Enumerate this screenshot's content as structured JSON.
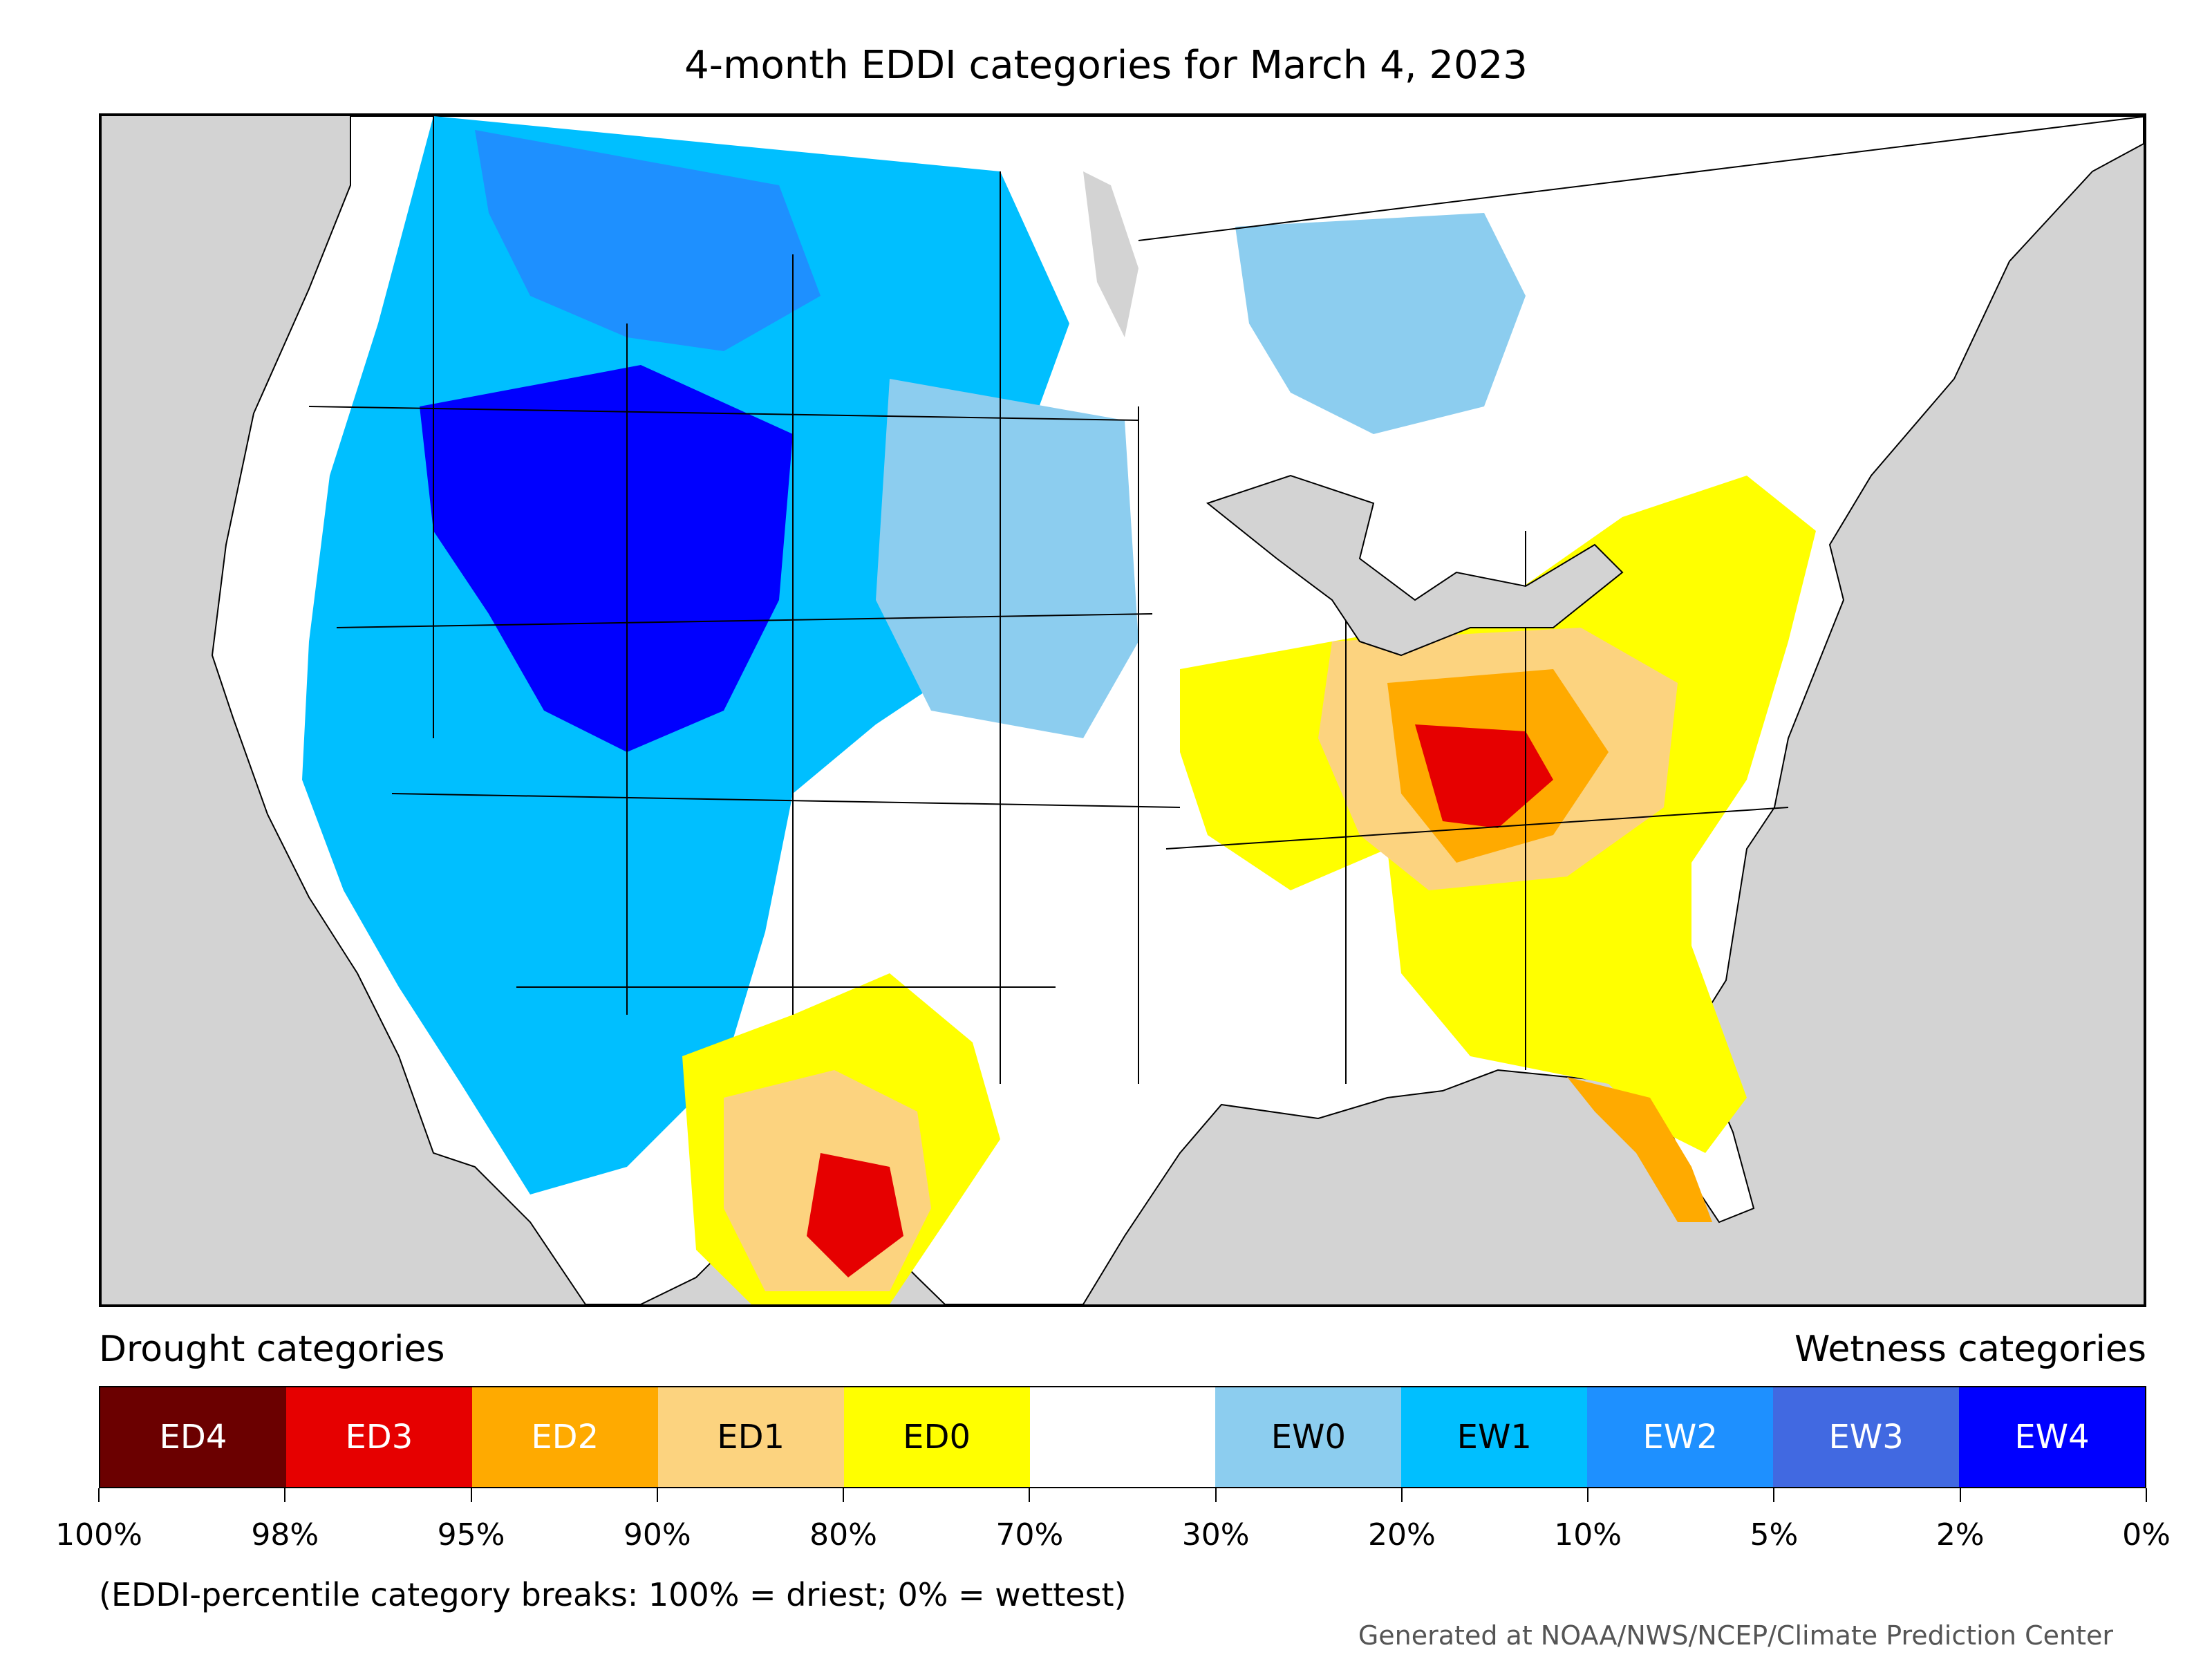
{
  "title": "4-month EDDI categories for March 4, 2023",
  "legend": {
    "left_heading": "Drought categories",
    "right_heading": "Wetness categories",
    "categories": [
      {
        "label": "ED4",
        "color": "#6b0000",
        "text_color": "#ffffff"
      },
      {
        "label": "ED3",
        "color": "#e60000",
        "text_color": "#ffffff"
      },
      {
        "label": "ED2",
        "color": "#ffaa00",
        "text_color": "#ffffff"
      },
      {
        "label": "ED1",
        "color": "#fcd37f",
        "text_color": "#000000"
      },
      {
        "label": "ED0",
        "color": "#ffff00",
        "text_color": "#000000"
      },
      {
        "label": "",
        "color": "#ffffff",
        "text_color": "#000000"
      },
      {
        "label": "EW0",
        "color": "#8ccdef",
        "text_color": "#000000"
      },
      {
        "label": "EW1",
        "color": "#00bfff",
        "text_color": "#000000"
      },
      {
        "label": "EW2",
        "color": "#1e90ff",
        "text_color": "#ffffff"
      },
      {
        "label": "EW3",
        "color": "#4169e1",
        "text_color": "#ffffff"
      },
      {
        "label": "EW4",
        "color": "#0000ff",
        "text_color": "#ffffff"
      }
    ],
    "breaks": [
      "100%",
      "98%",
      "95%",
      "90%",
      "80%",
      "70%",
      "30%",
      "20%",
      "10%",
      "5%",
      "2%",
      "0%"
    ]
  },
  "note": "(EDDI-percentile category breaks: 100% = driest; 0% = wettest)",
  "credit": "Generated at NOAA/NWS/NCEP/Climate Prediction Center",
  "colors": {
    "background": "#d3d3d3",
    "land": "#ffffff",
    "border": "#000000"
  }
}
